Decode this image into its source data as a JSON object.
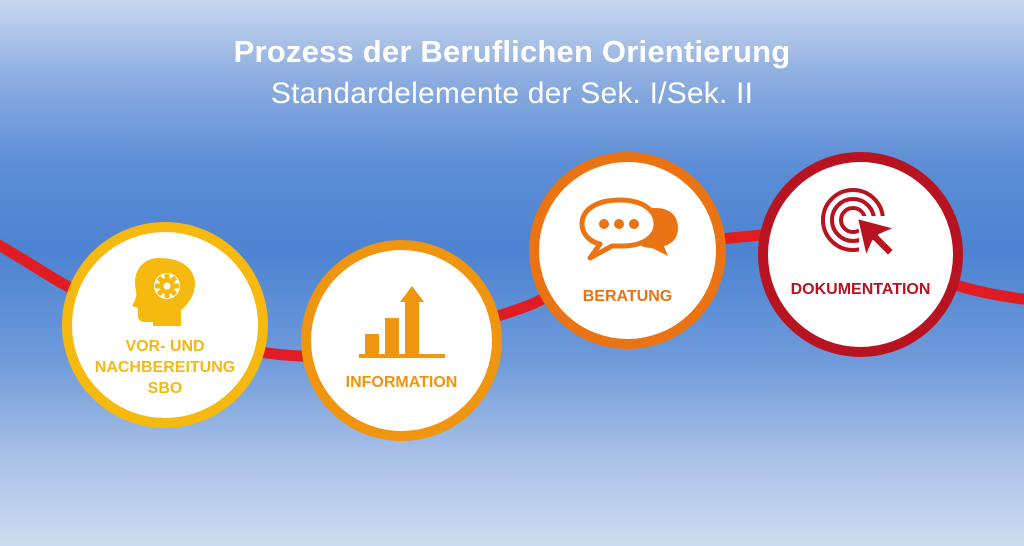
{
  "header": {
    "title": "Prozess der Beruflichen Orientierung",
    "subtitle": "Standardelemente der Sek. I/Sek. II"
  },
  "colors": {
    "path": "#e01b22",
    "step1": "#f6b90f",
    "step2": "#ef9510",
    "step3": "#ea7414",
    "step4": "#b71320"
  },
  "steps": [
    {
      "label": "VOR- UND\nNACHBEREITUNG\nSBO",
      "icon": "head-gear-icon"
    },
    {
      "label": "INFORMATION",
      "icon": "rising-bar-chart-icon"
    },
    {
      "label": "BERATUNG",
      "icon": "speech-bubbles-icon"
    },
    {
      "label": "DOKUMENTATION",
      "icon": "cursor-target-icon"
    }
  ]
}
